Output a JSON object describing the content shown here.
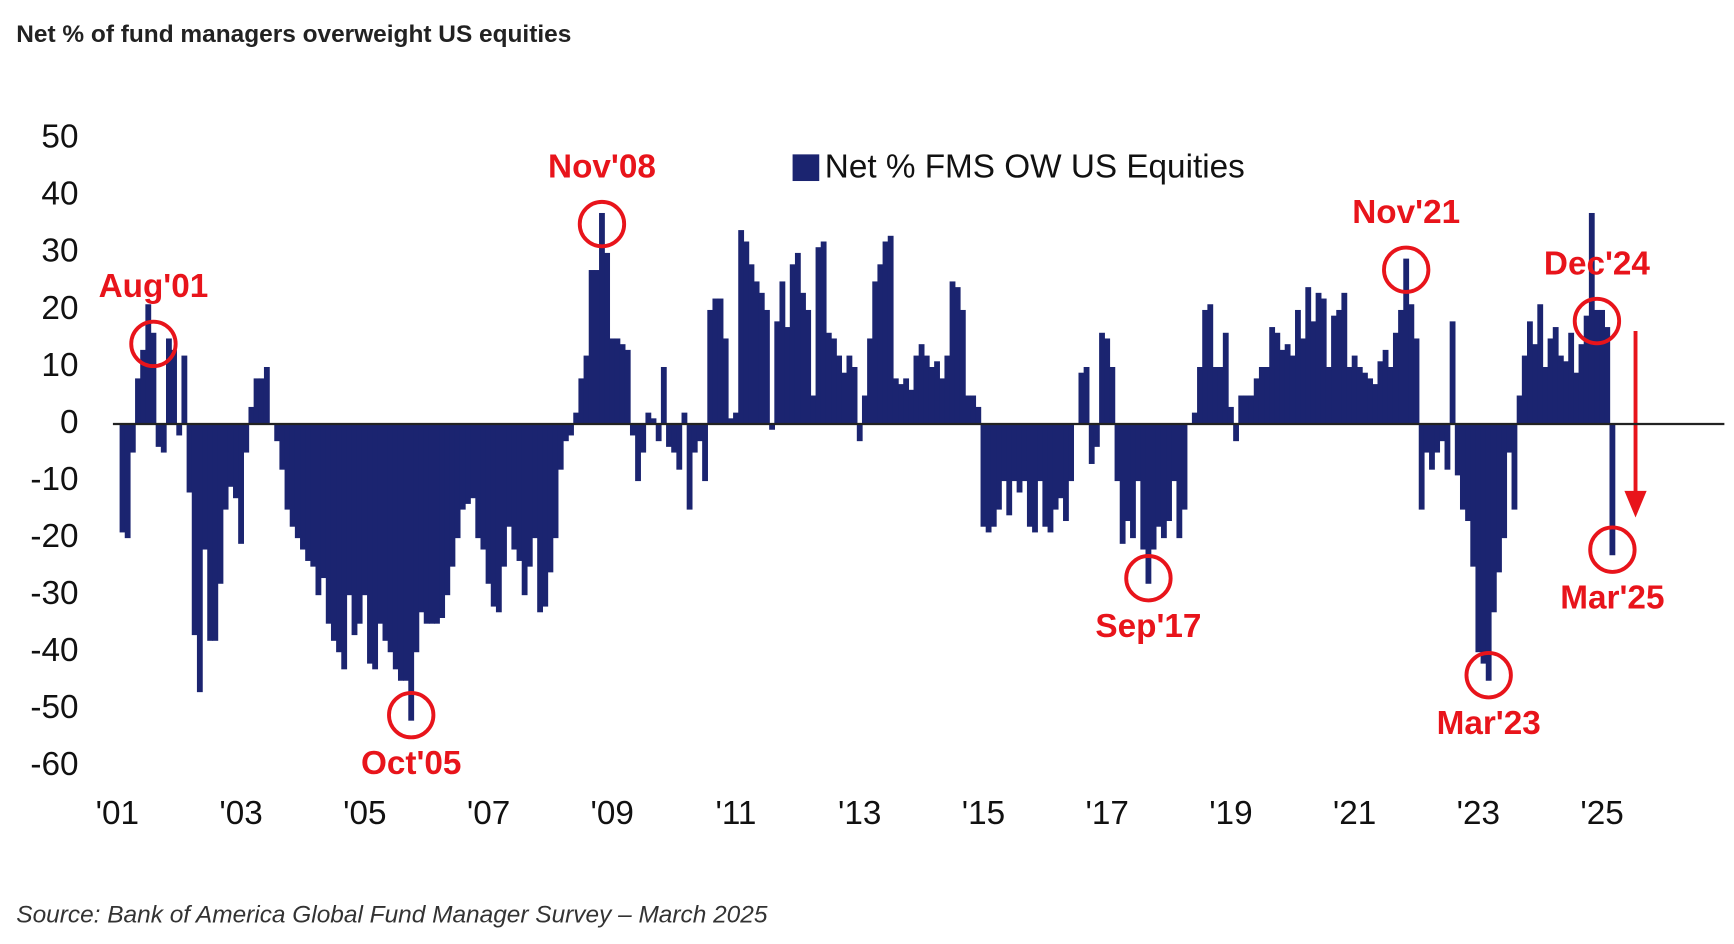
{
  "chart_data": {
    "type": "bar",
    "title": "Net % of fund managers overweight US equities",
    "source": "Source: Bank of America Global Fund Manager Survey – March 2025",
    "categories": [
      "'01",
      null,
      null,
      null,
      null,
      null,
      null,
      null,
      null,
      null,
      null,
      null,
      null,
      null,
      null,
      null,
      null,
      null,
      null,
      null,
      null,
      null,
      null,
      null,
      "'03",
      null,
      null,
      null,
      null,
      null,
      null,
      null,
      null,
      null,
      null,
      null,
      null,
      null,
      null,
      null,
      null,
      null,
      null,
      null,
      null,
      null,
      null,
      null,
      "'05",
      null,
      null,
      null,
      null,
      null,
      null,
      null,
      null,
      null,
      null,
      null,
      null,
      null,
      null,
      null,
      null,
      null,
      null,
      null,
      null,
      null,
      null,
      null,
      "'07",
      null,
      null,
      null,
      null,
      null,
      null,
      null,
      null,
      null,
      null,
      null,
      null,
      null,
      null,
      null,
      null,
      null,
      null,
      null,
      null,
      null,
      null,
      null,
      "'09",
      null,
      null,
      null,
      null,
      null,
      null,
      null,
      null,
      null,
      null,
      null,
      null,
      null,
      null,
      null,
      null,
      null,
      null,
      null,
      null,
      null,
      null,
      null,
      "'11",
      null,
      null,
      null,
      null,
      null,
      null,
      null,
      null,
      null,
      null,
      null,
      null,
      null,
      null,
      null,
      null,
      null,
      null,
      null,
      null,
      null,
      null,
      null,
      "'13",
      null,
      null,
      null,
      null,
      null,
      null,
      null,
      null,
      null,
      null,
      null,
      null,
      null,
      null,
      null,
      null,
      null,
      null,
      null,
      null,
      null,
      null,
      null,
      "'15",
      null,
      null,
      null,
      null,
      null,
      null,
      null,
      null,
      null,
      null,
      null,
      null,
      null,
      null,
      null,
      null,
      null,
      null,
      null,
      null,
      null,
      null,
      null,
      "'17",
      null,
      null,
      null,
      null,
      null,
      null,
      null,
      null,
      null,
      null,
      null,
      null,
      null,
      null,
      null,
      null,
      null,
      null,
      null,
      null,
      null,
      null,
      null,
      "'19",
      null,
      null,
      null,
      null,
      null,
      null,
      null,
      null,
      null,
      null,
      null,
      null,
      null,
      null,
      null,
      null,
      null,
      null,
      null,
      null,
      null,
      null,
      null,
      "'21",
      null,
      null,
      null,
      null,
      null,
      null,
      null,
      null,
      null,
      null,
      null,
      null,
      null,
      null,
      null,
      null,
      null,
      null,
      null,
      null,
      null,
      null,
      null,
      "'23",
      null,
      null,
      null,
      null,
      null,
      null,
      null,
      null,
      null,
      null,
      null,
      null,
      null,
      null,
      null,
      null,
      null,
      null,
      null,
      null,
      null,
      null,
      null,
      "'25",
      null,
      null
    ],
    "series": [
      {
        "name": "Net % FMS OW US Equities",
        "color": "#1b2470",
        "values": [
          0,
          -19,
          -20,
          -5,
          8,
          13,
          21,
          16,
          -4,
          -5,
          15,
          13,
          -2,
          12,
          -12,
          -37,
          -47,
          -22,
          -38,
          -38,
          -28,
          -15,
          -11,
          -13,
          -21,
          -5,
          3,
          8,
          8,
          10,
          0,
          -3,
          -8,
          -15,
          -18,
          -20,
          -22,
          -24,
          -25,
          -30,
          -27,
          -35,
          -38,
          -40,
          -43,
          -30,
          -37,
          -35,
          -30,
          -42,
          -43,
          -35,
          -38,
          -40,
          -43,
          -45,
          -45,
          -52,
          -40,
          -33,
          -35,
          -35,
          -35,
          -34,
          -30,
          -25,
          -20,
          -15,
          -14,
          -13,
          -20,
          -22,
          -28,
          -32,
          -33,
          -25,
          -18,
          -22,
          -24,
          -30,
          -25,
          -20,
          -33,
          -32,
          -26,
          -20,
          -8,
          -3,
          -2,
          2,
          8,
          12,
          27,
          27,
          37,
          30,
          15,
          15,
          14,
          13,
          -2,
          -10,
          -5,
          2,
          1,
          -3,
          10,
          -4,
          -5,
          -8,
          2,
          -15,
          -5,
          -3,
          -10,
          20,
          22,
          22,
          15,
          1,
          2,
          34,
          32,
          28,
          25,
          23,
          20,
          -1,
          18,
          25,
          17,
          28,
          30,
          23,
          20,
          5,
          31,
          32,
          16,
          15,
          12,
          9,
          12,
          10,
          -3,
          5,
          15,
          25,
          28,
          32,
          33,
          8,
          7,
          8,
          6,
          12,
          14,
          12,
          10,
          11,
          8,
          12,
          25,
          24,
          20,
          5,
          5,
          3,
          -18,
          -19,
          -18,
          -15,
          -10,
          -16,
          -10,
          -12,
          -10,
          -18,
          -19,
          -10,
          -18,
          -19,
          -15,
          -13,
          -17,
          -10,
          0,
          9,
          10,
          -7,
          -4,
          16,
          15,
          10,
          -10,
          -21,
          -17,
          -20,
          -10,
          -22,
          -28,
          -22,
          -18,
          -20,
          -17,
          -10,
          -20,
          -15,
          0,
          2,
          10,
          20,
          21,
          10,
          10,
          16,
          3,
          -3,
          5,
          5,
          5,
          8,
          10,
          10,
          17,
          16,
          13,
          14,
          12,
          20,
          15,
          24,
          18,
          23,
          22,
          10,
          19,
          20,
          23,
          10,
          12,
          10,
          9,
          8,
          7,
          11,
          13,
          10,
          16,
          20,
          29,
          21,
          15,
          -15,
          -5,
          -8,
          -5,
          -3,
          -8,
          18,
          -9,
          -15,
          -17,
          -25,
          -40,
          -42,
          -45,
          -33,
          -26,
          -20,
          -5,
          -15,
          5,
          12,
          18,
          14,
          21,
          10,
          15,
          17,
          12,
          11,
          16,
          9,
          14,
          19,
          37,
          20,
          20,
          17,
          -23
        ]
      }
    ],
    "annotations": [
      {
        "text": "Aug'01",
        "at": 7
      },
      {
        "text": "Oct'05",
        "at": 57
      },
      {
        "text": "Nov'08",
        "at": 94
      },
      {
        "text": "Sep'17",
        "at": 200
      },
      {
        "text": "Nov'21",
        "at": 250
      },
      {
        "text": "Mar'23",
        "at": 266
      },
      {
        "text": "Dec'24",
        "at": 287
      },
      {
        "text": "Mar'25",
        "at": 290
      }
    ],
    "annotation_color": "#e8141b",
    "ylim": [
      -60,
      50
    ],
    "yticks": [
      50,
      40,
      30,
      20,
      10,
      0,
      -10,
      -20,
      -30,
      -40,
      -50,
      -60
    ]
  }
}
